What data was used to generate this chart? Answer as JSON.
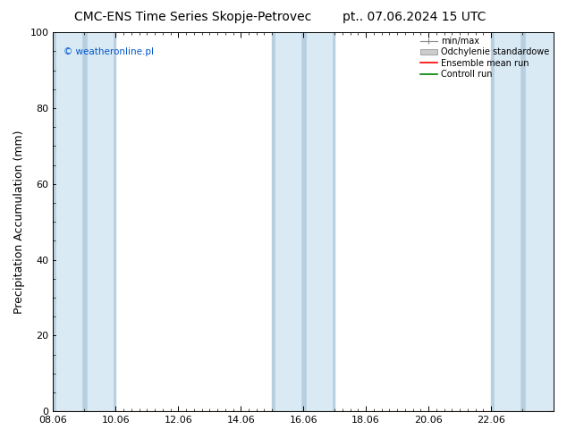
{
  "title_left": "CMC-ENS Time Series Skopje-Petrovec",
  "title_right": "pt.. 07.06.2024 15 UTC",
  "ylabel": "Precipitation Accumulation (mm)",
  "ylim": [
    0,
    100
  ],
  "xlim": [
    0,
    16
  ],
  "xtick_labels": [
    "08.06",
    "10.06",
    "12.06",
    "14.06",
    "16.06",
    "18.06",
    "20.06",
    "22.06"
  ],
  "xtick_positions": [
    0,
    2,
    4,
    6,
    8,
    10,
    12,
    14
  ],
  "ytick_positions": [
    0,
    20,
    40,
    60,
    80,
    100
  ],
  "ytick_labels": [
    "0",
    "20",
    "40",
    "60",
    "80",
    "100"
  ],
  "watermark": "© weatheronline.pl",
  "legend_entries": [
    "min/max",
    "Odchylenie standardowe",
    "Ensemble mean run",
    "Controll run"
  ],
  "shaded_bands_minmax": [
    [
      0.0,
      1.0
    ],
    [
      1.0,
      2.0
    ],
    [
      7.0,
      8.0
    ],
    [
      8.0,
      9.0
    ],
    [
      14.0,
      15.0
    ],
    [
      15.0,
      16.5
    ]
  ],
  "shaded_bands_std": [
    [
      0.1,
      0.9
    ],
    [
      1.1,
      1.9
    ],
    [
      7.1,
      7.9
    ],
    [
      8.1,
      8.9
    ],
    [
      14.1,
      14.9
    ],
    [
      15.1,
      16.4
    ]
  ],
  "background_color": "#ffffff",
  "plot_bg_color": "#ffffff",
  "minmax_color": "#b8cfe0",
  "std_color": "#daeaf5",
  "mean_color": "#ff0000",
  "control_color": "#008000",
  "mean_y": 0.0,
  "control_y": 0.0,
  "title_fontsize": 10,
  "axis_fontsize": 9,
  "tick_fontsize": 8
}
